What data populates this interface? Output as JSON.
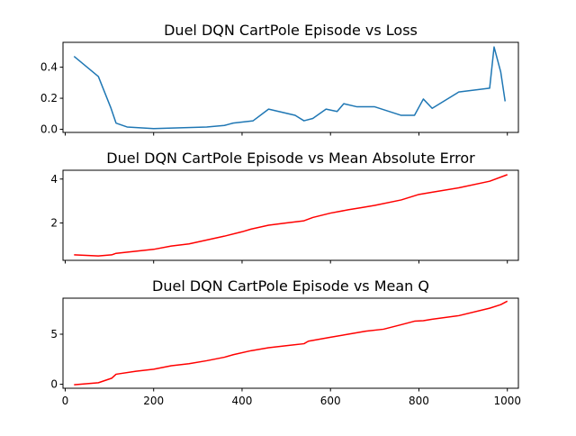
{
  "chart_data": [
    {
      "type": "line",
      "title": "Duel DQN CartPole Episode vs Loss",
      "xlabel": "",
      "ylabel": "",
      "xlim": [
        -5,
        1025
      ],
      "ylim": [
        -0.02,
        0.56
      ],
      "xticks": [
        0,
        200,
        400,
        600,
        800,
        1000
      ],
      "show_x_tick_labels": false,
      "yticks": [
        0.0,
        0.2,
        0.4
      ],
      "ytick_labels": [
        "0.0",
        "0.2",
        "0.4"
      ],
      "grid": false,
      "series": [
        {
          "color": "#1f77b4",
          "x": [
            20,
            75,
            103,
            115,
            140,
            200,
            260,
            320,
            360,
            380,
            425,
            460,
            520,
            540,
            560,
            590,
            615,
            630,
            660,
            700,
            760,
            790,
            810,
            830,
            890,
            960,
            970,
            985,
            995
          ],
          "y": [
            0.47,
            0.34,
            0.14,
            0.04,
            0.015,
            0.005,
            0.01,
            0.015,
            0.025,
            0.04,
            0.055,
            0.13,
            0.09,
            0.055,
            0.07,
            0.13,
            0.115,
            0.165,
            0.145,
            0.145,
            0.09,
            0.09,
            0.195,
            0.135,
            0.24,
            0.265,
            0.53,
            0.37,
            0.18
          ]
        }
      ]
    },
    {
      "type": "line",
      "title": "Duel DQN CartPole Episode vs Mean Absolute Error",
      "xlabel": "",
      "ylabel": "",
      "xlim": [
        -5,
        1025
      ],
      "ylim": [
        0.3,
        4.4
      ],
      "xticks": [
        0,
        200,
        400,
        600,
        800,
        1000
      ],
      "show_x_tick_labels": false,
      "yticks": [
        2,
        4
      ],
      "ytick_labels": [
        "2",
        "4"
      ],
      "grid": false,
      "series": [
        {
          "color": "#ff0000",
          "x": [
            20,
            75,
            105,
            115,
            200,
            240,
            280,
            360,
            400,
            420,
            460,
            500,
            540,
            560,
            600,
            640,
            670,
            700,
            760,
            800,
            830,
            890,
            960,
            1000
          ],
          "y": [
            0.55,
            0.5,
            0.55,
            0.62,
            0.8,
            0.95,
            1.05,
            1.4,
            1.6,
            1.72,
            1.9,
            2.0,
            2.1,
            2.25,
            2.45,
            2.6,
            2.7,
            2.8,
            3.05,
            3.3,
            3.4,
            3.6,
            3.9,
            4.2
          ]
        }
      ]
    },
    {
      "type": "line",
      "title": "Duel DQN CartPole Episode vs Mean Q",
      "xlabel": "",
      "ylabel": "",
      "xlim": [
        -5,
        1025
      ],
      "ylim": [
        -0.4,
        8.6
      ],
      "xticks": [
        0,
        200,
        400,
        600,
        800,
        1000
      ],
      "xtick_labels": [
        "0",
        "200",
        "400",
        "600",
        "800",
        "1000"
      ],
      "show_x_tick_labels": true,
      "yticks": [
        0,
        5
      ],
      "ytick_labels": [
        "0",
        "5"
      ],
      "grid": false,
      "series": [
        {
          "color": "#ff0000",
          "x": [
            20,
            75,
            105,
            115,
            160,
            200,
            240,
            280,
            320,
            360,
            380,
            420,
            460,
            500,
            540,
            550,
            600,
            640,
            680,
            720,
            760,
            790,
            810,
            830,
            890,
            960,
            985,
            1000
          ],
          "y": [
            -0.05,
            0.15,
            0.6,
            1.0,
            1.3,
            1.5,
            1.85,
            2.05,
            2.35,
            2.7,
            2.95,
            3.35,
            3.65,
            3.85,
            4.05,
            4.3,
            4.7,
            5.0,
            5.3,
            5.5,
            5.95,
            6.3,
            6.35,
            6.5,
            6.85,
            7.6,
            7.95,
            8.3
          ]
        }
      ]
    }
  ]
}
